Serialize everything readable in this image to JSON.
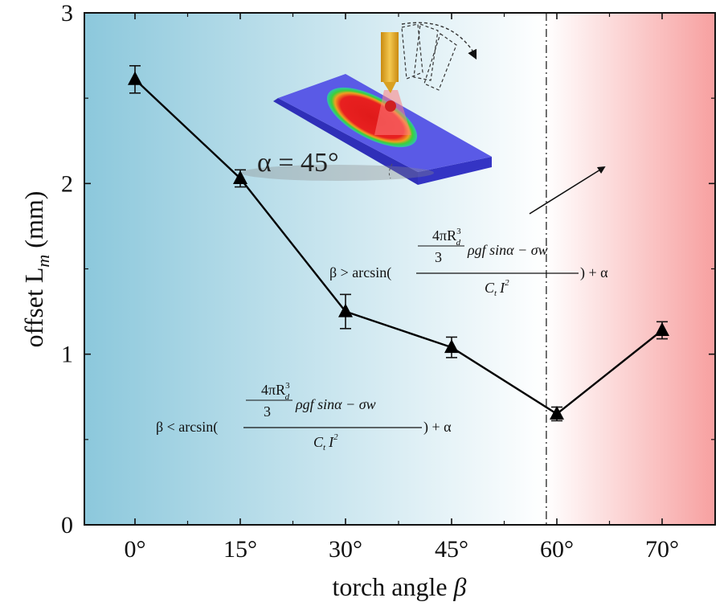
{
  "chart_data": {
    "type": "line",
    "xlabel": "torch angle β",
    "ylabel": "offset L",
    "ylabel_sub": "m",
    "ylabel_unit": "(mm)",
    "categories": [
      "0°",
      "15°",
      "30°",
      "45°",
      "60°",
      "70°"
    ],
    "x": [
      0,
      15,
      30,
      45,
      60,
      70
    ],
    "series": [
      {
        "name": "offset",
        "values": [
          2.61,
          2.03,
          1.25,
          1.04,
          0.65,
          1.14
        ],
        "error": [
          0.08,
          0.05,
          0.1,
          0.06,
          0.04,
          0.05
        ]
      }
    ],
    "ylim": [
      0,
      3
    ],
    "yticks": [
      0,
      1,
      2,
      3
    ],
    "threshold_x_deg": 58.5,
    "background": {
      "left_color": "#8cc8dc",
      "mid_color": "#ffffff",
      "right_color": "#f7a0a0"
    },
    "annotations": {
      "alpha": "α = 45°",
      "formula_upper": {
        "rel": "β > arcsin(",
        "num_top": "4πR",
        "num_top_sup": "3",
        "num_top_sub": "d",
        "num_top_div": "3",
        "num_rest": "ρgf sinα − σw",
        "den": "C",
        "den_sub": "t",
        "den_rest": "I",
        "den_sup": "2",
        "tail": ") + α"
      },
      "formula_lower": {
        "rel": "β < arcsin(",
        "num_top": "4πR",
        "num_top_sup": "3",
        "num_top_sub": "d",
        "num_top_div": "3",
        "num_rest": "ρgf sinα − σw",
        "den": "C",
        "den_sub": "t",
        "den_rest": "I",
        "den_sup": "2",
        "tail": ") + α"
      }
    }
  },
  "colors": {
    "line": "#000000",
    "plate": "#5a5ae6",
    "plate_side": "#2f2fb8",
    "pool_red": "#e01a1a",
    "pool_ring": "#3ad13a",
    "torch": "#e8b030"
  }
}
